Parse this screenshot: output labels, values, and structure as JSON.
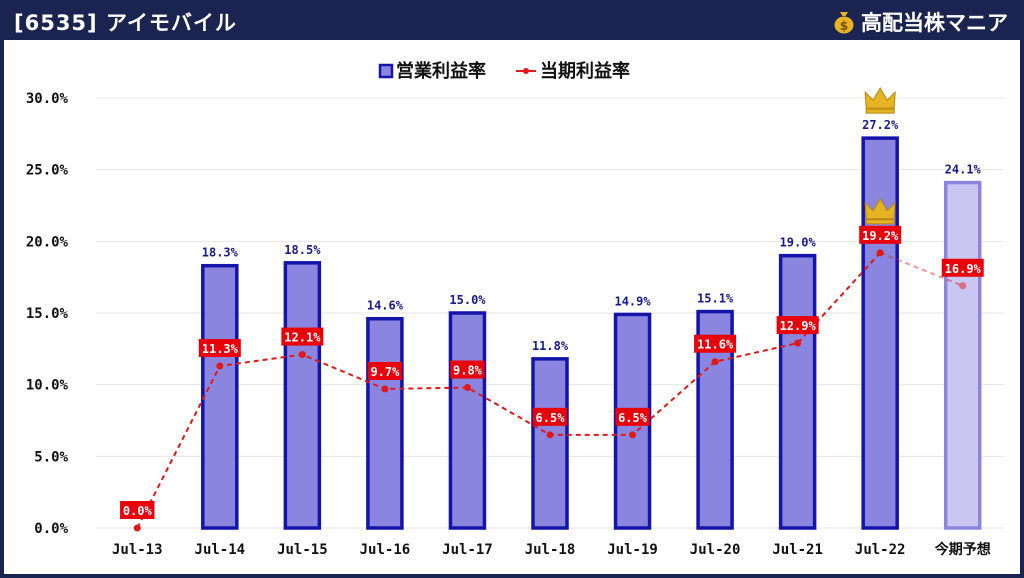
{
  "header": {
    "title": "[6535] アイモバイル",
    "brand": "高配当株マニア",
    "brand_icon": "money-bag-icon"
  },
  "colors": {
    "bar_fill": "#8a86e0",
    "bar_stroke": "#1414aa",
    "forecast_fill": "#c9c6f2",
    "forecast_stroke": "#8a86e0",
    "line": "#e01818",
    "label_bg": "#e8000b",
    "bar_label": "#1a1a8c",
    "crown": "#e6b422"
  },
  "chart_data": {
    "type": "bar",
    "categories": [
      "Jul-13",
      "Jul-14",
      "Jul-15",
      "Jul-16",
      "Jul-17",
      "Jul-18",
      "Jul-19",
      "Jul-20",
      "Jul-21",
      "Jul-22",
      "今期予想"
    ],
    "series": [
      {
        "name": "営業利益率",
        "type": "bar",
        "values": [
          null,
          18.3,
          18.5,
          14.6,
          15.0,
          11.8,
          14.9,
          15.1,
          19.0,
          27.2,
          24.1
        ],
        "labels": [
          "",
          "18.3%",
          "18.5%",
          "14.6%",
          "15.0%",
          "11.8%",
          "14.9%",
          "15.1%",
          "19.0%",
          "27.2%",
          "24.1%"
        ],
        "forecast_index": 10,
        "max_index": 9
      },
      {
        "name": "当期利益率",
        "type": "line",
        "values": [
          0.0,
          11.3,
          12.1,
          9.7,
          9.8,
          6.5,
          6.5,
          11.6,
          12.9,
          19.2,
          16.9
        ],
        "labels": [
          "0.0%",
          "11.3%",
          "12.1%",
          "9.7%",
          "9.8%",
          "6.5%",
          "6.5%",
          "11.6%",
          "12.9%",
          "19.2%",
          "16.9%"
        ],
        "forecast_index": 10,
        "max_index": 9
      }
    ],
    "y_ticks": [
      "0.0%",
      "5.0%",
      "10.0%",
      "15.0%",
      "20.0%",
      "25.0%",
      "30.0%"
    ],
    "y_tick_values": [
      0,
      5,
      10,
      15,
      20,
      25,
      30
    ],
    "ylim": [
      0,
      30
    ],
    "grid": true,
    "legend_position": "top-center",
    "max_marker_icon": "crown-icon"
  }
}
